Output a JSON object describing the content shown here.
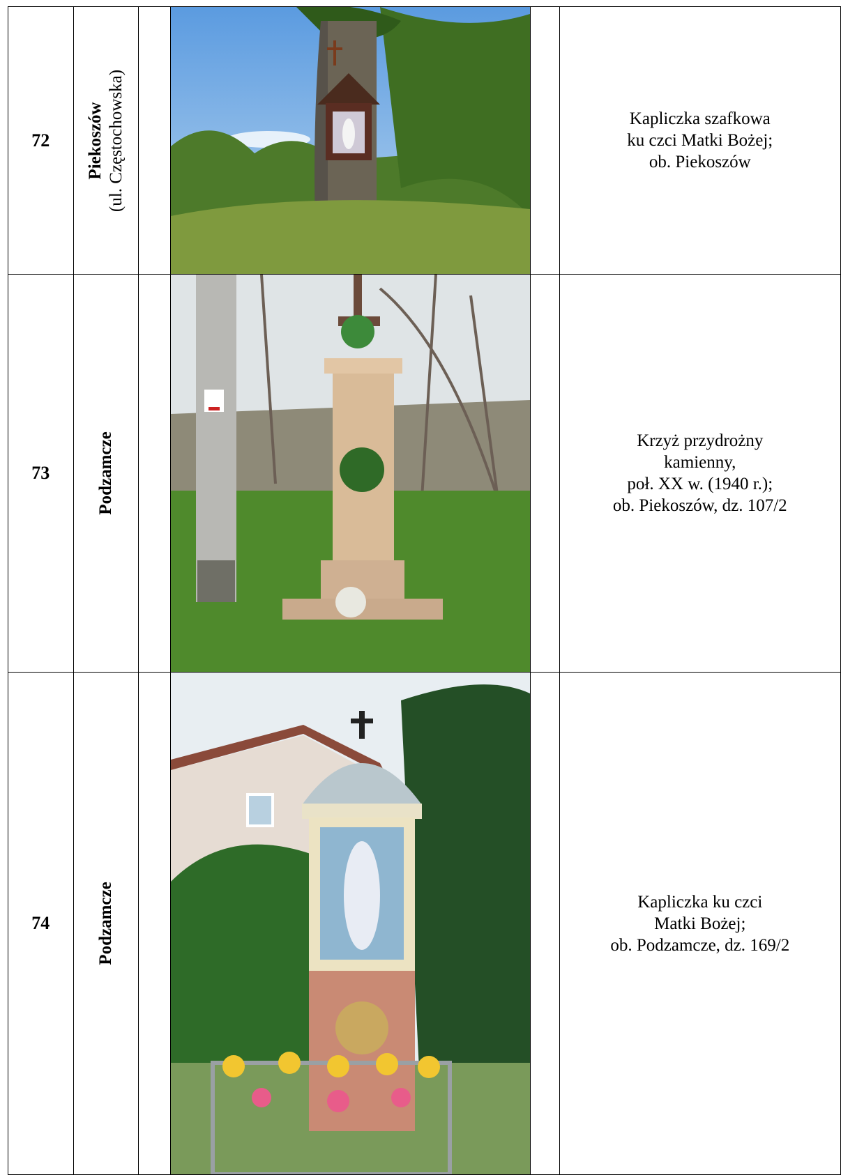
{
  "table": {
    "rows": [
      {
        "number": "72",
        "place": "Piekoszów",
        "place_detail": "(ul. Częstochowska)",
        "description": [
          "Kapliczka szafkowa",
          "ku czci Matki Bożej;",
          "ob. Piekoszów"
        ]
      },
      {
        "number": "73",
        "place": "Podzamcze",
        "description": [
          "Krzyż przydrożny",
          "kamienny,",
          "poł. XX w. (1940 r.);",
          "ob. Piekoszów, dz. 107/2"
        ]
      },
      {
        "number": "74",
        "place": "Podzamcze",
        "description": [
          "Kapliczka ku czci",
          "Matki Bożej;",
          "ob. Podzamcze, dz. 169/2"
        ]
      }
    ]
  }
}
